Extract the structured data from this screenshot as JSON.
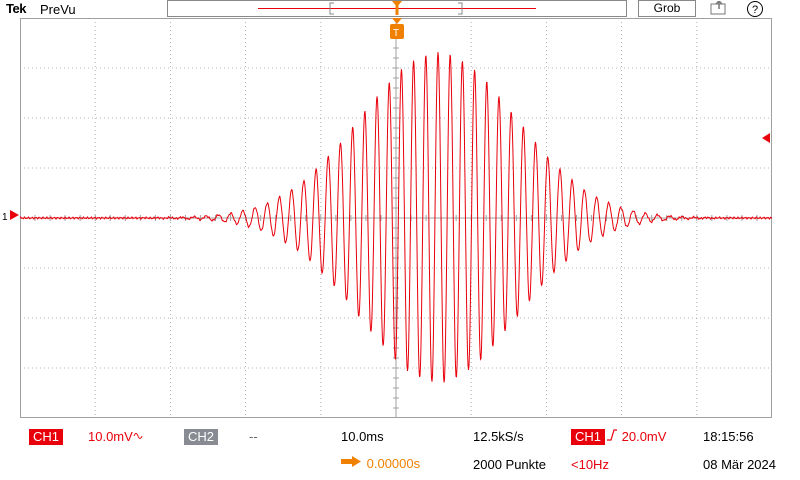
{
  "header": {
    "brand": "Tek",
    "mode": "PreVu",
    "acq_button": "Grob",
    "help_glyph": "?"
  },
  "display": {
    "trace_color": "#e8000b",
    "trigger_color": "#f08000",
    "grid_color": "#a0a0a0",
    "ch1_marker_label": "1",
    "trigger_marker_label": "T",
    "divisions_x": 10,
    "divisions_y": 8,
    "waveform": "gaussian-enveloped sinusoid burst centered at trigger, about 3.3 vertical divisions peak"
  },
  "status": {
    "ch1_label": "CH1",
    "ch1_scale": "10.0mV",
    "ch1_coupling_icon": "bandwidth-limit-icon",
    "ch2_label": "CH2",
    "ch2_scale": "--",
    "timebase": "10.0ms",
    "sample_rate": "12.5kS/s",
    "record_length": "2000 Punkte",
    "trigger_source": "CH1",
    "trigger_slope_icon": "rising-edge-icon",
    "trigger_level": "20.0mV",
    "trigger_freq": "<10Hz",
    "trigger_position": "0.00000s",
    "time": "18:15:56",
    "date": "08 Mär 2024"
  }
}
